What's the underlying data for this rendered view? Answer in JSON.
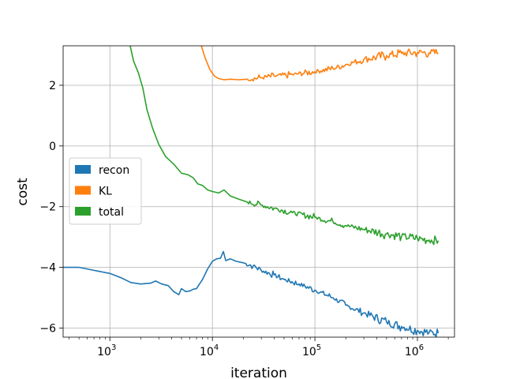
{
  "chart_data": {
    "type": "line",
    "xlabel": "iteration",
    "ylabel": "cost",
    "xscale": "log",
    "xlim": [
      350,
      2300000
    ],
    "ylim": [
      -6.3,
      3.3
    ],
    "grid": true,
    "legend_position": "center-left",
    "x_ticks": [
      {
        "value": 1000,
        "base": "10",
        "exp": "3"
      },
      {
        "value": 10000,
        "base": "10",
        "exp": "4"
      },
      {
        "value": 100000,
        "base": "10",
        "exp": "5"
      },
      {
        "value": 1000000,
        "base": "10",
        "exp": "6"
      }
    ],
    "y_ticks": [
      {
        "value": -6,
        "label": "−6"
      },
      {
        "value": -4,
        "label": "−4"
      },
      {
        "value": -2,
        "label": "−2"
      },
      {
        "value": 0,
        "label": "0"
      },
      {
        "value": 2,
        "label": "2"
      }
    ],
    "series": [
      {
        "name": "recon",
        "color": "#1f77b4",
        "x": [
          350,
          500,
          700,
          1000,
          1300,
          1600,
          2000,
          2500,
          2800,
          3200,
          3700,
          4200,
          4700,
          5000,
          5500,
          6000,
          6500,
          7000,
          8000,
          9000,
          10000,
          11000,
          12000,
          12800,
          13500,
          15000,
          17000,
          20000,
          25000,
          30000,
          40000,
          50000,
          70000,
          100000,
          150000,
          200000,
          300000,
          500000,
          700000,
          1000000,
          1300000,
          1600000
        ],
        "y": [
          -4.0,
          -4.0,
          -4.1,
          -4.2,
          -4.35,
          -4.5,
          -4.55,
          -4.52,
          -4.45,
          -4.55,
          -4.6,
          -4.8,
          -4.9,
          -4.7,
          -4.8,
          -4.78,
          -4.72,
          -4.7,
          -4.4,
          -4.05,
          -3.8,
          -3.72,
          -3.7,
          -3.48,
          -3.78,
          -3.72,
          -3.8,
          -3.85,
          -3.95,
          -4.1,
          -4.25,
          -4.4,
          -4.55,
          -4.75,
          -5.0,
          -5.25,
          -5.5,
          -5.8,
          -5.95,
          -6.08,
          -6.15,
          -6.17
        ]
      },
      {
        "name": "KL",
        "color": "#ff7f0e",
        "x": [
          7800,
          8500,
          9500,
          10500,
          11500,
          13000,
          15000,
          18000,
          22000,
          30000,
          40000,
          60000,
          100000,
          150000,
          200000,
          300000,
          500000,
          700000,
          1000000,
          1300000,
          1600000
        ],
        "y": [
          3.3,
          2.9,
          2.5,
          2.3,
          2.22,
          2.18,
          2.2,
          2.18,
          2.2,
          2.25,
          2.3,
          2.35,
          2.45,
          2.55,
          2.68,
          2.85,
          2.98,
          3.05,
          3.08,
          3.07,
          3.06
        ]
      },
      {
        "name": "total",
        "color": "#2ca02c",
        "x": [
          1580,
          1700,
          1900,
          2100,
          2300,
          2600,
          3000,
          3500,
          4200,
          5000,
          5800,
          6500,
          7200,
          8000,
          9000,
          10000,
          11500,
          13000,
          15000,
          18000,
          22000,
          30000,
          40000,
          60000,
          100000,
          150000,
          200000,
          300000,
          500000,
          700000,
          1000000,
          1300000,
          1600000
        ],
        "y": [
          3.3,
          2.8,
          2.4,
          1.9,
          1.2,
          0.6,
          0.05,
          -0.35,
          -0.6,
          -0.9,
          -0.95,
          -1.05,
          -1.25,
          -1.3,
          -1.45,
          -1.5,
          -1.55,
          -1.45,
          -1.65,
          -1.75,
          -1.85,
          -1.95,
          -2.05,
          -2.2,
          -2.35,
          -2.5,
          -2.62,
          -2.75,
          -2.9,
          -2.98,
          -3.05,
          -3.1,
          -3.12
        ]
      }
    ]
  }
}
